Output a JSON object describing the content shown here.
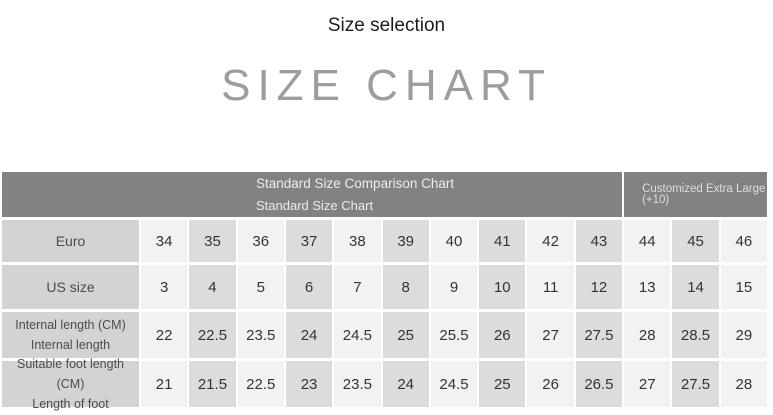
{
  "page": {
    "title": "Size selection",
    "chart_title": "SIZE CHART"
  },
  "chart_data": {
    "type": "table",
    "title": "SIZE CHART",
    "subtitle": "Size selection",
    "header": {
      "left_line1": "Standard Size Comparison Chart",
      "left_line2": "Standard Size Chart",
      "right_line1": "Customized Extra Large",
      "right_line2": "(+10)"
    },
    "rows": [
      {
        "label_lines": [
          "Euro"
        ],
        "values": [
          "34",
          "35",
          "36",
          "37",
          "38",
          "39",
          "40",
          "41",
          "42",
          "43",
          "44",
          "45",
          "46"
        ]
      },
      {
        "label_lines": [
          "US size"
        ],
        "values": [
          "3",
          "4",
          "5",
          "6",
          "7",
          "8",
          "9",
          "10",
          "11",
          "12",
          "13",
          "14",
          "15"
        ]
      },
      {
        "label_lines": [
          "Internal length (CM)",
          "Internal length"
        ],
        "values": [
          "22",
          "22.5",
          "23.5",
          "24",
          "24.5",
          "25",
          "25.5",
          "26",
          "27",
          "27.5",
          "28",
          "28.5",
          "29"
        ]
      },
      {
        "label_lines": [
          "Suitable foot length (CM)",
          "Length of foot"
        ],
        "values": [
          "21",
          "21.5",
          "22.5",
          "23",
          "23.5",
          "24",
          "24.5",
          "25",
          "26",
          "26.5",
          "27",
          "27.5",
          "28"
        ]
      }
    ]
  },
  "colors": {
    "header_bg": "#828282",
    "header_text": "#ececec",
    "label_bg": "#d3d3d3",
    "cell_light": "#f2f2f1",
    "cell_dark": "#dcdcdc",
    "big_title_text": "#9d9d9d",
    "title_text": "#1b1b1b"
  }
}
